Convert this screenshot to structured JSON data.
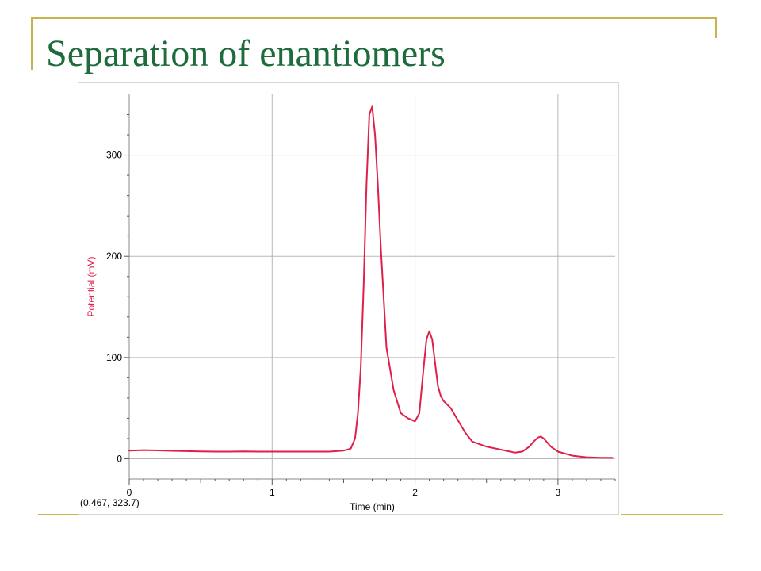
{
  "slide": {
    "title": "Separation of enantiomers",
    "accent_color": "#c8b44a",
    "title_color": "#1e6b3c"
  },
  "chart_data": {
    "type": "line",
    "xlabel": "Time (min)",
    "ylabel": "Potential (mV)",
    "xlim": [
      0,
      3.4
    ],
    "ylim": [
      -20,
      360
    ],
    "x_ticks": [
      0,
      1,
      2,
      3
    ],
    "y_ticks": [
      0,
      100,
      200,
      300
    ],
    "grid": true,
    "readout": "(0.467, 323.7)",
    "series": [
      {
        "color": "#e0204a",
        "x": [
          0,
          0.1,
          0.2,
          0.3,
          0.4,
          0.5,
          0.6,
          0.7,
          0.8,
          0.9,
          1.0,
          1.1,
          1.2,
          1.3,
          1.4,
          1.5,
          1.55,
          1.58,
          1.6,
          1.62,
          1.64,
          1.66,
          1.68,
          1.7,
          1.72,
          1.74,
          1.76,
          1.78,
          1.8,
          1.85,
          1.9,
          1.95,
          2.0,
          2.03,
          2.06,
          2.08,
          2.1,
          2.12,
          2.14,
          2.16,
          2.18,
          2.2,
          2.25,
          2.3,
          2.35,
          2.4,
          2.5,
          2.6,
          2.7,
          2.75,
          2.8,
          2.83,
          2.86,
          2.88,
          2.9,
          2.95,
          3.0,
          3.1,
          3.2,
          3.3,
          3.38
        ],
        "y": [
          8,
          8.5,
          8.2,
          7.8,
          7.5,
          7.2,
          7,
          7,
          7.2,
          7,
          7,
          7,
          7,
          7,
          7,
          8,
          10,
          20,
          45,
          90,
          170,
          270,
          340,
          348,
          320,
          270,
          210,
          160,
          110,
          68,
          45,
          40,
          37,
          45,
          90,
          118,
          126,
          118,
          95,
          72,
          62,
          57,
          50,
          38,
          26,
          17,
          12,
          9,
          6,
          7,
          12,
          17,
          21,
          22,
          20,
          12,
          7,
          3,
          1.5,
          1,
          1
        ]
      }
    ]
  }
}
